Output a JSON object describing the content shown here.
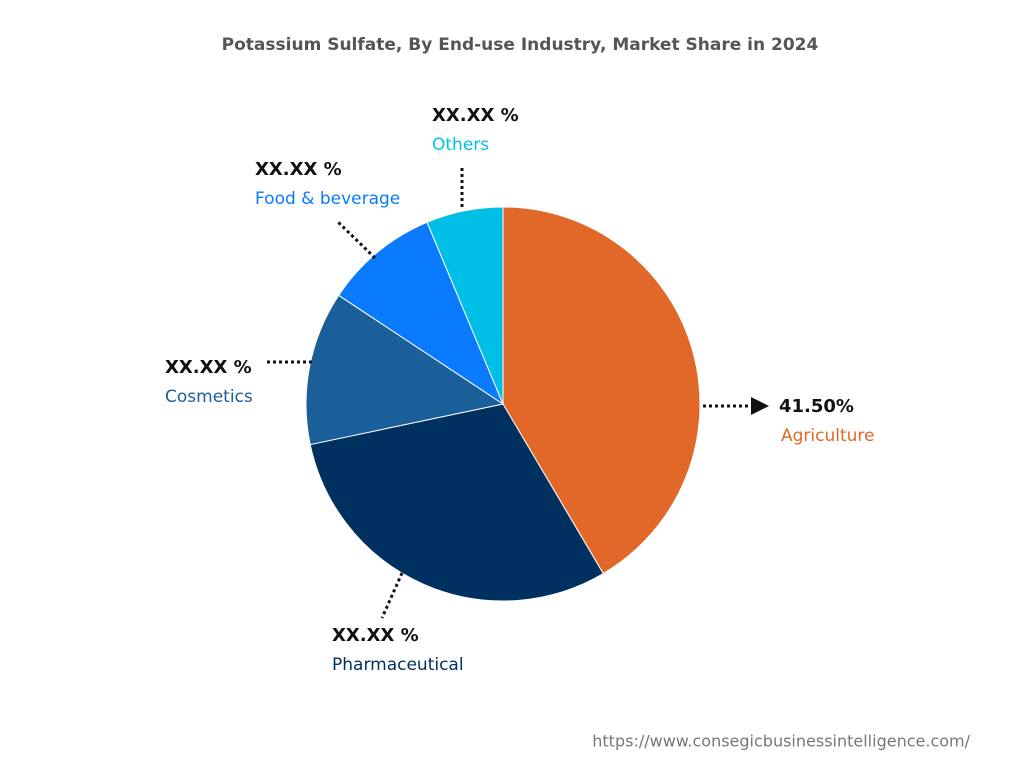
{
  "chart_data": {
    "type": "pie",
    "title": "Potassium Sulfate, By End-use Industry, Market Share in 2024",
    "categories": [
      "Agriculture",
      "Pharmaceutical",
      "Cosmetics",
      "Food & beverage",
      "Others"
    ],
    "values": [
      41.5,
      30.2,
      12.6,
      9.4,
      6.3
    ],
    "value_labels": [
      "41.50%",
      "XX.XX %",
      "XX.XX %",
      "XX.XX %",
      "XX.XX %"
    ],
    "colors": [
      "#e2682a",
      "#003060",
      "#1a5f9a",
      "#0a7bff",
      "#00bfe6"
    ],
    "source": "https://www.consegicbusinessintelligence.com/"
  }
}
